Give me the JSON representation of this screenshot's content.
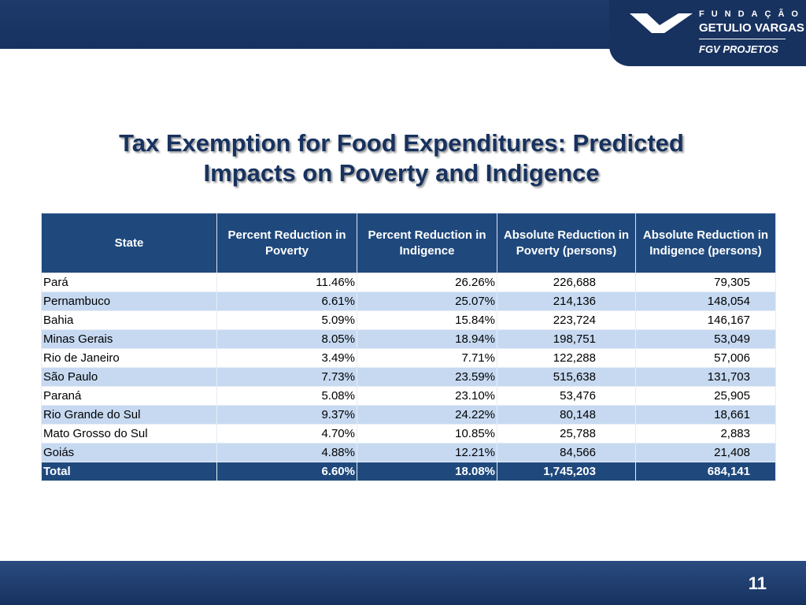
{
  "logo": {
    "line1": "FUNDAÇÃO",
    "line2": "GETULIO VARGAS",
    "line3": "FGV PROJETOS"
  },
  "title": {
    "line1": "Tax Exemption for Food Expenditures: Predicted",
    "line2": "Impacts on Poverty and Indigence"
  },
  "table": {
    "headers": [
      "State",
      "Percent Reduction in Poverty",
      "Percent Reduction in Indigence",
      "Absolute Reduction in Poverty (persons)",
      "Absolute Reduction in Indigence (persons)"
    ],
    "rows": [
      [
        "Pará",
        "11.46%",
        "26.26%",
        "226,688",
        "79,305"
      ],
      [
        "Pernambuco",
        "6.61%",
        "25.07%",
        "214,136",
        "148,054"
      ],
      [
        "Bahia",
        "5.09%",
        "15.84%",
        "223,724",
        "146,167"
      ],
      [
        "Minas Gerais",
        "8.05%",
        "18.94%",
        "198,751",
        "53,049"
      ],
      [
        "Rio de Janeiro",
        "3.49%",
        "7.71%",
        "122,288",
        "57,006"
      ],
      [
        "São Paulo",
        "7.73%",
        "23.59%",
        "515,638",
        "131,703"
      ],
      [
        "Paraná",
        "5.08%",
        "23.10%",
        "53,476",
        "25,905"
      ],
      [
        "Rio Grande do Sul",
        "9.37%",
        "24.22%",
        "80,148",
        "18,661"
      ],
      [
        "Mato Grosso do Sul",
        "4.70%",
        "10.85%",
        "25,788",
        "2,883"
      ],
      [
        "Goiás",
        "4.88%",
        "12.21%",
        "84,566",
        "21,408"
      ]
    ],
    "total": [
      "Total",
      "6.60%",
      "18.08%",
      "1,745,203",
      "684,141"
    ]
  },
  "colors": {
    "header": "#1f497d",
    "alt_row": "#c6d9f1",
    "banner": "#17325f"
  },
  "page_number": "11"
}
